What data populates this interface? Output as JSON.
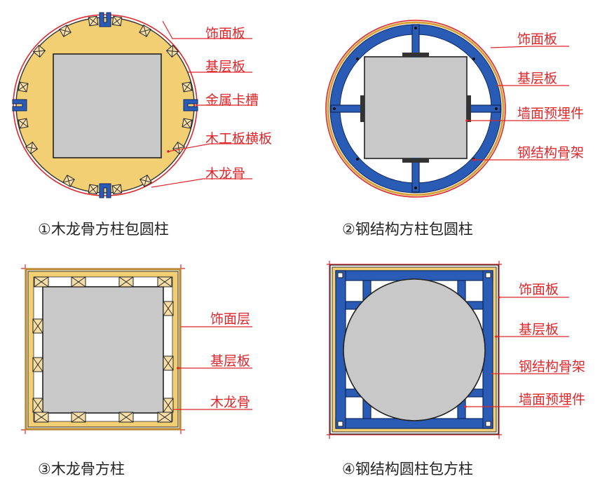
{
  "diagram1": {
    "labels": [
      "饰面板",
      "基层板",
      "金属卡槽",
      "木工板横板",
      "木龙骨"
    ],
    "caption": "①木龙骨方柱包圆柱"
  },
  "diagram2": {
    "labels": [
      "饰面板",
      "基层板",
      "墙面预埋件",
      "钢结构骨架"
    ],
    "caption": "②钢结构方柱包圆柱"
  },
  "diagram3": {
    "labels": [
      "饰面层",
      "基层板",
      "木龙骨"
    ],
    "caption": "③木龙骨方柱"
  },
  "diagram4": {
    "labels": [
      "饰面板",
      "基层板",
      "钢结构骨架",
      "墙面预埋件"
    ],
    "caption": "④钢结构圆柱包方柱"
  },
  "colors": {
    "leader_red": "#e0262a",
    "concrete_gray": "#c8c8c8",
    "steel_blue": "#2a5bb5",
    "wood_yellow": "#f3cf74"
  }
}
